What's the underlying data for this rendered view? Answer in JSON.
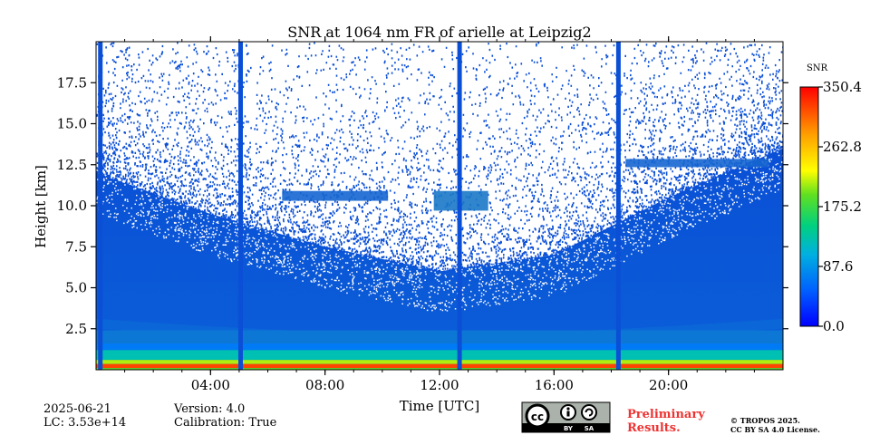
{
  "chart_data": {
    "type": "heatmap",
    "title": "SNR at 1064 nm FR of arielle at Leipzig2",
    "xlabel": "Time [UTC]",
    "ylabel": "Height [km]",
    "xlim_hours": [
      0,
      24
    ],
    "ylim_km": [
      0,
      20
    ],
    "x_ticks": [
      {
        "hour": 4,
        "label": "04:00"
      },
      {
        "hour": 8,
        "label": "08:00"
      },
      {
        "hour": 12,
        "label": "12:00"
      },
      {
        "hour": 16,
        "label": "16:00"
      },
      {
        "hour": 20,
        "label": "20:00"
      }
    ],
    "y_ticks": [
      {
        "km": 2.5,
        "label": "2.5"
      },
      {
        "km": 5.0,
        "label": "5.0"
      },
      {
        "km": 7.5,
        "label": "7.5"
      },
      {
        "km": 10.0,
        "label": "10.0"
      },
      {
        "km": 12.5,
        "label": "12.5"
      },
      {
        "km": 15.0,
        "label": "15.0"
      },
      {
        "km": 17.5,
        "label": "17.5"
      }
    ],
    "colorbar": {
      "label": "SNR",
      "range": [
        0,
        350.4
      ],
      "ticks": [
        {
          "value": 0.0,
          "label": "0.0"
        },
        {
          "value": 87.6,
          "label": "87.6"
        },
        {
          "value": 175.2,
          "label": "175.2"
        },
        {
          "value": 262.8,
          "label": "262.8"
        },
        {
          "value": 350.4,
          "label": "350.4"
        }
      ]
    },
    "signal_top_km": [
      {
        "hour": 0,
        "km": 12.0
      },
      {
        "hour": 4,
        "km": 9.5
      },
      {
        "hour": 8,
        "km": 7.5
      },
      {
        "hour": 12,
        "km": 6.0
      },
      {
        "hour": 16,
        "km": 7.0
      },
      {
        "hour": 20,
        "km": 10.5
      },
      {
        "hour": 24,
        "km": 13.5
      }
    ],
    "vertical_gaps_hours": [
      0.15,
      5.05,
      12.7,
      18.25
    ],
    "cloud_layers": [
      {
        "start_hour": 6.5,
        "end_hour": 10.2,
        "km": 10.6,
        "depth_km": 0.6
      },
      {
        "start_hour": 11.8,
        "end_hour": 13.7,
        "km": 10.3,
        "depth_km": 1.2
      },
      {
        "start_hour": 18.5,
        "end_hour": 23.5,
        "km": 12.6,
        "depth_km": 0.5
      }
    ],
    "near_surface_layers": [
      {
        "from_km": 0.1,
        "to_km": 0.35,
        "snr": 320
      },
      {
        "from_km": 0.35,
        "to_km": 0.6,
        "snr": 210
      },
      {
        "from_km": 0.6,
        "to_km": 1.2,
        "snr": 125
      },
      {
        "from_km": 1.2,
        "to_km": 1.6,
        "snr": 70
      }
    ]
  },
  "footer": {
    "date": "2025-06-21",
    "lc": "LC: 3.53e+14",
    "version": "Version: 4.0",
    "calibration": "Calibration: True",
    "prelim_line1": "Preliminary",
    "prelim_line2": "Results.",
    "copyright_line1": "© TROPOS 2025.",
    "copyright_line2": "CC BY SA 4.0 License.",
    "license_badge": {
      "cc": "cc",
      "by": "BY",
      "sa": "SA",
      "icons": [
        "cc-icon",
        "attribution-icon",
        "share-alike-icon"
      ]
    }
  },
  "colors": {
    "background_signal": "#0a4fd6",
    "low": "#0055dd",
    "mid": "#00aa88",
    "high": "#ffee00",
    "max": "#ff1100"
  }
}
